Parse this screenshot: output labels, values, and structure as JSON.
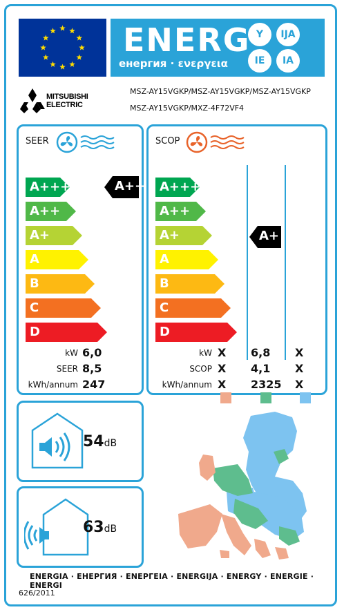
{
  "header": {
    "energ_word": "ENERG",
    "energ_subtitle": "енергия · ενεργεια",
    "lang_bubbles": [
      "Y",
      "IJA",
      "IE",
      "IA"
    ]
  },
  "brand": {
    "name_line1": "MITSUBISHI",
    "name_line2": "ELECTRIC"
  },
  "models": {
    "line1": "MSZ-AY15VGKP/MSZ-AY15VGKP/MSZ-AY15VGKP",
    "line2": "MSZ-AY15VGKP/MXZ-4F72VF4"
  },
  "seer_panel": {
    "title": "SEER",
    "classes": [
      "A+++",
      "A++",
      "A+",
      "A",
      "B",
      "C",
      "D"
    ],
    "indicator": "A+++",
    "rows": [
      {
        "label": "kW",
        "value": "6,0"
      },
      {
        "label": "SEER",
        "value": "8,5"
      },
      {
        "label": "kWh/annum",
        "value": "247"
      }
    ]
  },
  "scop_panel": {
    "title": "SCOP",
    "classes": [
      "A+++",
      "A++",
      "A+",
      "A",
      "B",
      "C",
      "D"
    ],
    "indicator": "A+",
    "rows": [
      {
        "label": "kW",
        "cols": [
          "X",
          "6,8",
          "X"
        ]
      },
      {
        "label": "SCOP",
        "cols": [
          "X",
          "4,1",
          "X"
        ]
      },
      {
        "label": "kWh/annum",
        "cols": [
          "X",
          "2325",
          "X"
        ]
      }
    ],
    "zone_colors": [
      "#f0a98c",
      "#5ebd8e",
      "#7dc3f0"
    ]
  },
  "noise_indoor": {
    "value": "54",
    "unit": "dB"
  },
  "noise_outdoor": {
    "value": "63",
    "unit": "dB"
  },
  "footer": {
    "energy_words": "ENERGIA · ЕНЕРГИЯ · ΕΝΕΡΓΕΙΑ · ENERGIJA · ENERGY · ENERGIE · ENERGI",
    "regulation": "626/2011"
  },
  "colors": {
    "frame_blue": "#2aa3d8",
    "eu_blue": "#003399",
    "eu_star": "#ffdd00",
    "class_colors": [
      "#00a651",
      "#50b848",
      "#b5d334",
      "#fff200",
      "#fdb913",
      "#f37021",
      "#ed1c24"
    ]
  }
}
